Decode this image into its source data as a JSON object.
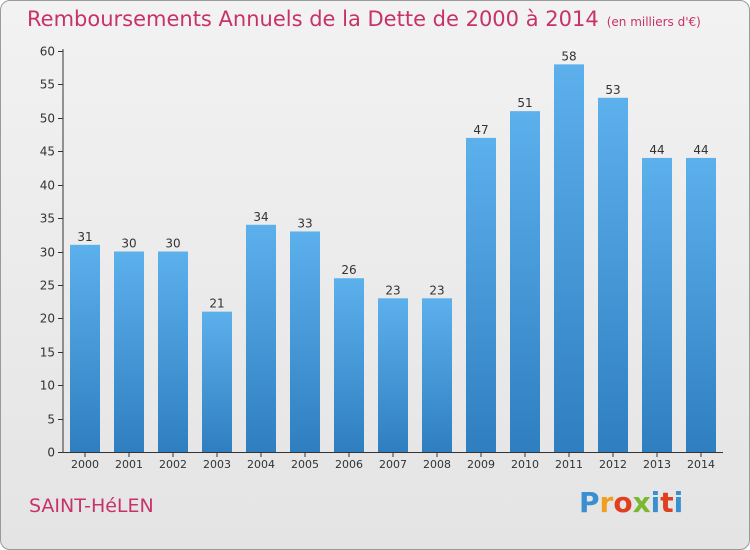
{
  "header": {
    "title": "Remboursements Annuels de la Dette de 2000 à 2014",
    "unit": "(en milliers d'€)"
  },
  "footer": {
    "commune": "SAINT-HéLEN",
    "logo_letters": [
      "P",
      "r",
      "o",
      "x",
      "i",
      "t",
      "i"
    ],
    "logo_colors": [
      "#3a8fd0",
      "#f0a020",
      "#e04020",
      "#7ab830",
      "#3a8fd0",
      "#e04020",
      "#3a8fd0"
    ]
  },
  "chart_data": {
    "type": "bar",
    "title": "Remboursements Annuels de la Dette de 2000 à 2014",
    "subtitle": "(en milliers d'€)",
    "categories": [
      "2000",
      "2001",
      "2002",
      "2003",
      "2004",
      "2005",
      "2006",
      "2007",
      "2008",
      "2009",
      "2010",
      "2011",
      "2012",
      "2013",
      "2014"
    ],
    "values": [
      31,
      30,
      30,
      21,
      34,
      33,
      26,
      23,
      23,
      47,
      51,
      58,
      53,
      44,
      44
    ],
    "ylim": [
      0,
      60
    ],
    "yticks": [
      0,
      5,
      10,
      15,
      20,
      25,
      30,
      35,
      40,
      45,
      50,
      55,
      60
    ],
    "xlabel": "",
    "ylabel": "",
    "grid": false,
    "bar_color": "#4a98d8"
  }
}
